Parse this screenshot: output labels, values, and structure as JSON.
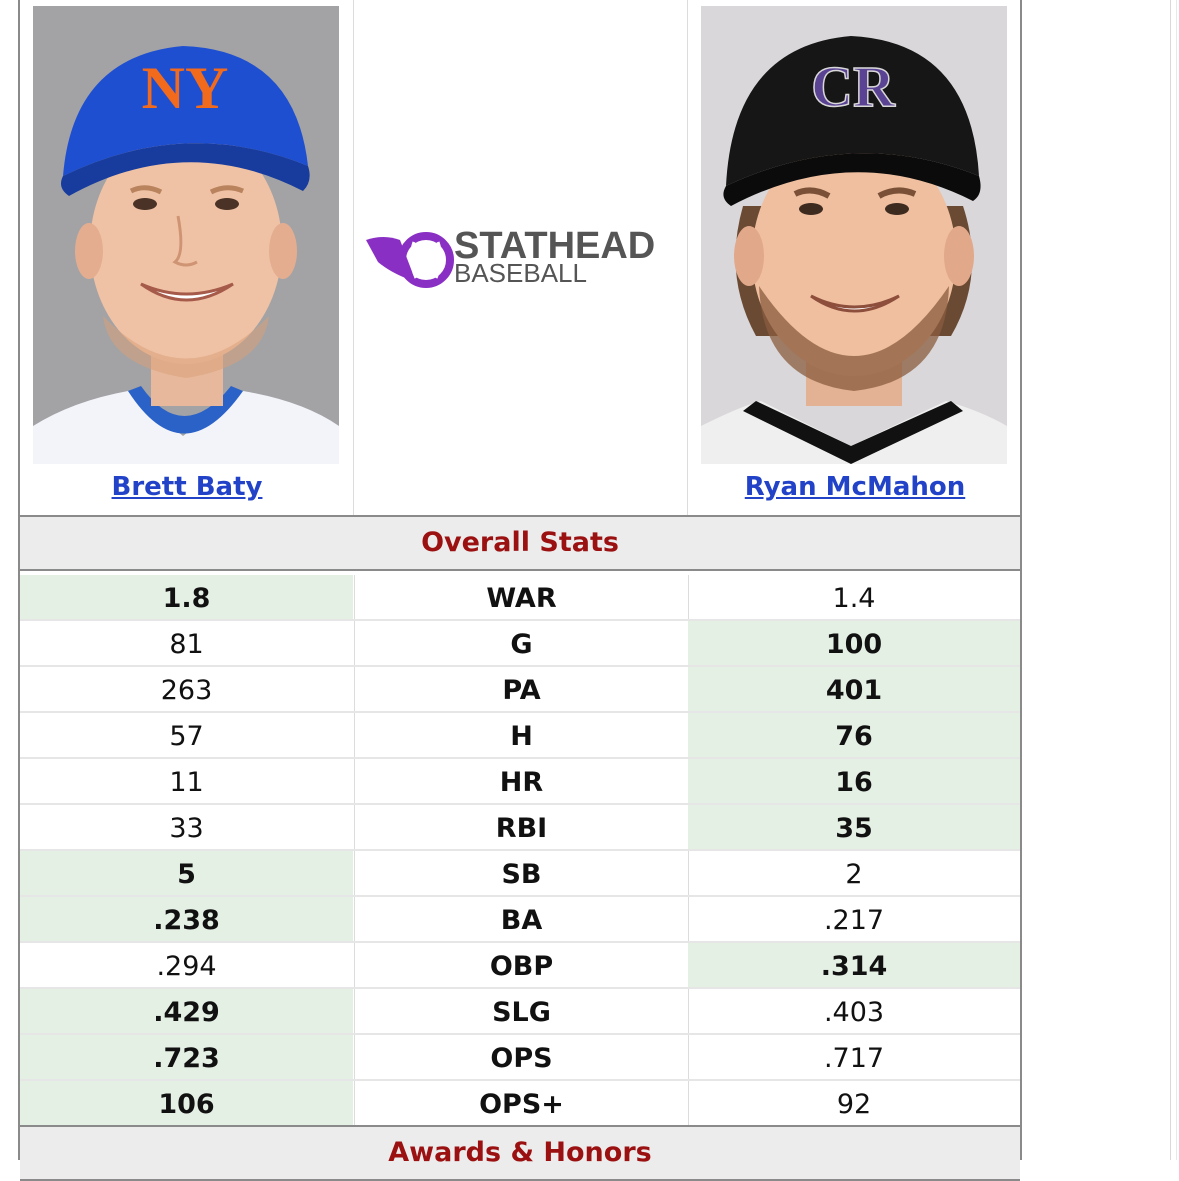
{
  "players": {
    "left": {
      "name": "Brett Baty",
      "cap_logo": "NY",
      "cap_color": "#1f4fd1",
      "logo_color": "#f26a1b"
    },
    "right": {
      "name": "Ryan McMahon",
      "cap_logo": "CR",
      "cap_color": "#151515",
      "logo_color": "#5b4394"
    }
  },
  "logo": {
    "line1": "STATHEAD",
    "line2": "BASEBALL",
    "accent": "#8a2fc4"
  },
  "overall": {
    "title": "Overall Stats",
    "rows": [
      {
        "stat": "WAR",
        "left": "1.8",
        "right": "1.4",
        "winner": "left"
      },
      {
        "stat": "G",
        "left": "81",
        "right": "100",
        "winner": "right"
      },
      {
        "stat": "PA",
        "left": "263",
        "right": "401",
        "winner": "right"
      },
      {
        "stat": "H",
        "left": "57",
        "right": "76",
        "winner": "right"
      },
      {
        "stat": "HR",
        "left": "11",
        "right": "16",
        "winner": "right"
      },
      {
        "stat": "RBI",
        "left": "33",
        "right": "35",
        "winner": "right"
      },
      {
        "stat": "SB",
        "left": "5",
        "right": "2",
        "winner": "left"
      },
      {
        "stat": "BA",
        "left": ".238",
        "right": ".217",
        "winner": "left"
      },
      {
        "stat": "OBP",
        "left": ".294",
        "right": ".314",
        "winner": "right"
      },
      {
        "stat": "SLG",
        "left": ".429",
        "right": ".403",
        "winner": "left"
      },
      {
        "stat": "OPS",
        "left": ".723",
        "right": ".717",
        "winner": "left"
      },
      {
        "stat": "OPS+",
        "left": "106",
        "right": "92",
        "winner": "left"
      }
    ]
  },
  "awards": {
    "title": "Awards & Honors"
  },
  "colors": {
    "win_bg": "#e5f0e5",
    "section_title": "#9b1111",
    "link": "#2243c8"
  }
}
